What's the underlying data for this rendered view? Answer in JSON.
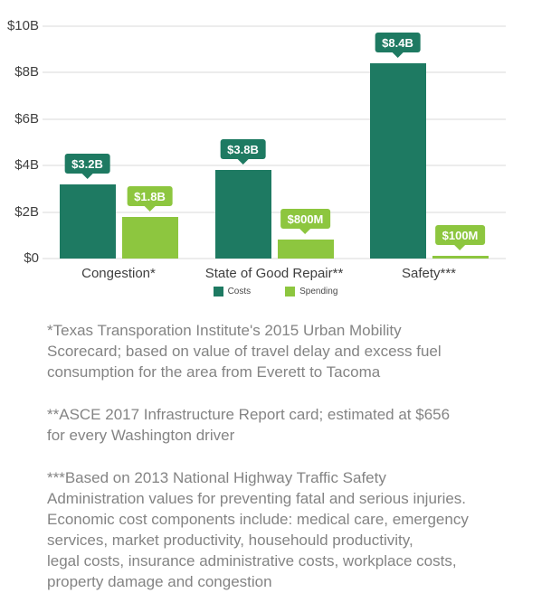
{
  "chart_data": {
    "type": "bar",
    "title": "",
    "xlabel": "",
    "ylabel": "",
    "unit": "US dollars",
    "categories": [
      "Congestion*",
      "State of Good Repair**",
      "Safety***"
    ],
    "series": [
      {
        "name": "Costs",
        "color": "#1E7A62",
        "values_in_billions": [
          3.2,
          3.8,
          8.4
        ],
        "value_labels": [
          "$3.2B",
          "$3.8B",
          "$8.4B"
        ]
      },
      {
        "name": "Spending",
        "color": "#8DC63F",
        "values_in_billions": [
          1.8,
          0.8,
          0.1
        ],
        "value_labels": [
          "$1.8B",
          "$800M",
          "$100M"
        ]
      }
    ],
    "y_axis": {
      "min": 0,
      "max": 10,
      "ticks": [
        {
          "value": 0,
          "label": "$0"
        },
        {
          "value": 2,
          "label": "$2B"
        },
        {
          "value": 4,
          "label": "$4B"
        },
        {
          "value": 6,
          "label": "$6B"
        },
        {
          "value": 8,
          "label": "$8B"
        },
        {
          "value": 10,
          "label": "$10B"
        }
      ]
    },
    "grid": true,
    "legend_position": "bottom"
  },
  "footnotes": [
    "*Texas Transporation Institute's 2015 Urban Mobility\nScorecard; based on value of travel delay and excess fuel\nconsumption for the area from Everett to Tacoma",
    "**ASCE 2017 Infrastructure Report card; estimated at $656\nfor every Washington driver",
    "***Based on 2013 National Highway Traffic Safety\nAdministration values for preventing fatal and serious injuries.\nEconomic cost components include: medical care, emergency\nservices, market productivity, househould productivity,\nlegal costs, insurance administrative costs, workplace costs,\nproperty damage and congestion"
  ],
  "colors": {
    "costs": "#1E7A62",
    "spending": "#8DC63F",
    "gridline": "#ececec",
    "axis_text": "#404040",
    "footnote_text": "#848484",
    "background": "#ffffff"
  }
}
